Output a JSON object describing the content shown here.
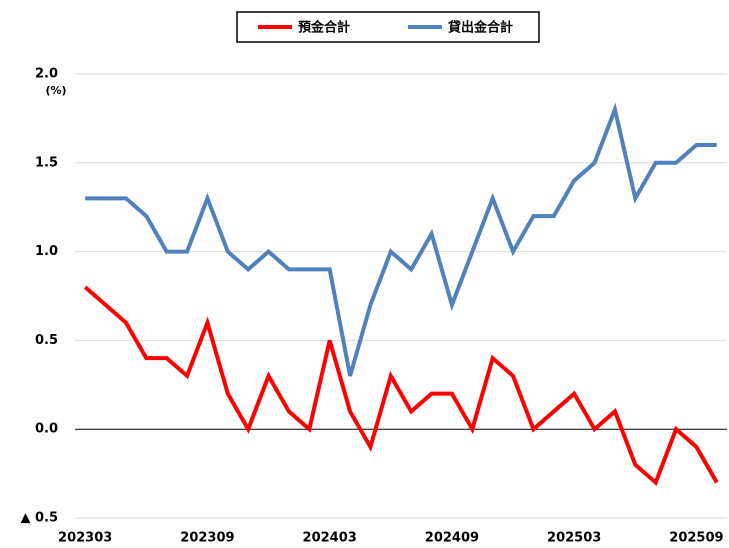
{
  "chart_data": {
    "type": "line",
    "y_unit": "(%)",
    "categories": [
      "202303",
      null,
      null,
      null,
      null,
      null,
      "202309",
      null,
      null,
      null,
      null,
      null,
      "202403",
      null,
      null,
      null,
      null,
      null,
      "202409",
      null,
      null,
      null,
      null,
      null,
      "202503",
      null,
      null,
      null,
      null,
      null,
      "202509",
      null
    ],
    "series": [
      {
        "name": "預金合計",
        "color": "#ff0000",
        "values": [
          0.8,
          0.7,
          0.6,
          0.4,
          0.4,
          0.3,
          0.6,
          0.2,
          0.0,
          0.3,
          0.1,
          0.0,
          0.5,
          0.1,
          -0.1,
          0.3,
          0.1,
          0.2,
          0.2,
          0.0,
          0.4,
          0.3,
          0.0,
          0.1,
          0.2,
          0.0,
          0.1,
          -0.2,
          -0.3,
          0.0,
          -0.1,
          -0.3
        ]
      },
      {
        "name": "貸出金合計",
        "color": "#4f81bd",
        "values": [
          1.3,
          1.3,
          1.3,
          1.2,
          1.0,
          1.0,
          1.3,
          1.0,
          0.9,
          1.0,
          0.9,
          0.9,
          0.9,
          0.3,
          0.7,
          1.0,
          0.9,
          1.1,
          0.7,
          1.0,
          1.3,
          1.0,
          1.2,
          1.2,
          1.4,
          1.5,
          1.8,
          1.3,
          1.5,
          1.5,
          1.6,
          1.6
        ]
      }
    ],
    "ylim": [
      -0.5,
      2.0
    ],
    "yticks": [
      {
        "value": 2,
        "label": "2.0"
      },
      1.5,
      {
        "value": 1,
        "label": "1.0"
      },
      0.5,
      {
        "value": 0,
        "label": "0.0"
      },
      {
        "value": -0.5,
        "label": "▲ 0.5"
      }
    ],
    "grid": true,
    "legend": "top"
  }
}
